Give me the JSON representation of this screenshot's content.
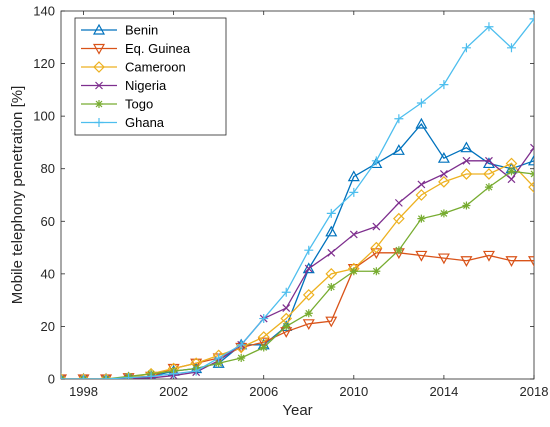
{
  "chart_data": {
    "type": "line",
    "title": "",
    "xlabel": "Year",
    "ylabel": "Mobile telephony penetration [%]",
    "xlim": [
      1997,
      2018
    ],
    "ylim": [
      0,
      140
    ],
    "xticks": [
      1998,
      2002,
      2006,
      2010,
      2014,
      2018
    ],
    "yticks": [
      0,
      20,
      40,
      60,
      80,
      100,
      120,
      140
    ],
    "grid": false,
    "legend_position": "top-left",
    "x": [
      1997,
      1998,
      1999,
      2000,
      2001,
      2002,
      2003,
      2004,
      2005,
      2006,
      2007,
      2008,
      2009,
      2010,
      2011,
      2012,
      2013,
      2014,
      2015,
      2016,
      2017,
      2018
    ],
    "series": [
      {
        "name": "Benin",
        "color": "#0072BD",
        "marker": "triangle-up",
        "values": [
          0,
          0,
          0,
          0.5,
          1,
          3,
          4,
          6,
          13,
          13,
          20,
          42,
          56,
          77,
          82,
          87,
          97,
          84,
          88,
          82,
          80,
          83
        ]
      },
      {
        "name": "Eq. Guinea",
        "color": "#D95319",
        "marker": "triangle-down",
        "values": [
          0,
          0,
          0,
          0.5,
          1,
          4,
          6,
          8,
          12,
          14,
          18,
          21,
          22,
          42,
          48,
          48,
          47,
          46,
          45,
          47,
          45,
          45
        ]
      },
      {
        "name": "Cameroon",
        "color": "#EDB120",
        "marker": "diamond",
        "values": [
          0,
          0,
          0,
          0.5,
          2,
          4,
          6,
          9,
          12,
          16,
          23,
          32,
          40,
          42,
          50,
          61,
          70,
          75,
          78,
          78,
          82,
          73
        ]
      },
      {
        "name": "Nigeria",
        "color": "#7E2F8E",
        "marker": "x",
        "values": [
          0,
          0,
          0,
          0.3,
          0.4,
          1.3,
          2.6,
          7,
          13,
          23,
          27,
          42,
          48,
          55,
          58,
          67,
          74,
          78,
          83,
          83,
          76,
          88
        ]
      },
      {
        "name": "Togo",
        "color": "#77AC30",
        "marker": "asterisk",
        "values": [
          0,
          0,
          0,
          1,
          2,
          3,
          4,
          6,
          8,
          12,
          20,
          25,
          35,
          41,
          41,
          49,
          61,
          63,
          66,
          73,
          79,
          78
        ]
      },
      {
        "name": "Ghana",
        "color": "#4DBEEE",
        "marker": "plus",
        "values": [
          0,
          0,
          0,
          0.5,
          1,
          2,
          3,
          8,
          13,
          23,
          33,
          49,
          63,
          71,
          83,
          99,
          105,
          112,
          126,
          134,
          126,
          137
        ]
      }
    ]
  }
}
